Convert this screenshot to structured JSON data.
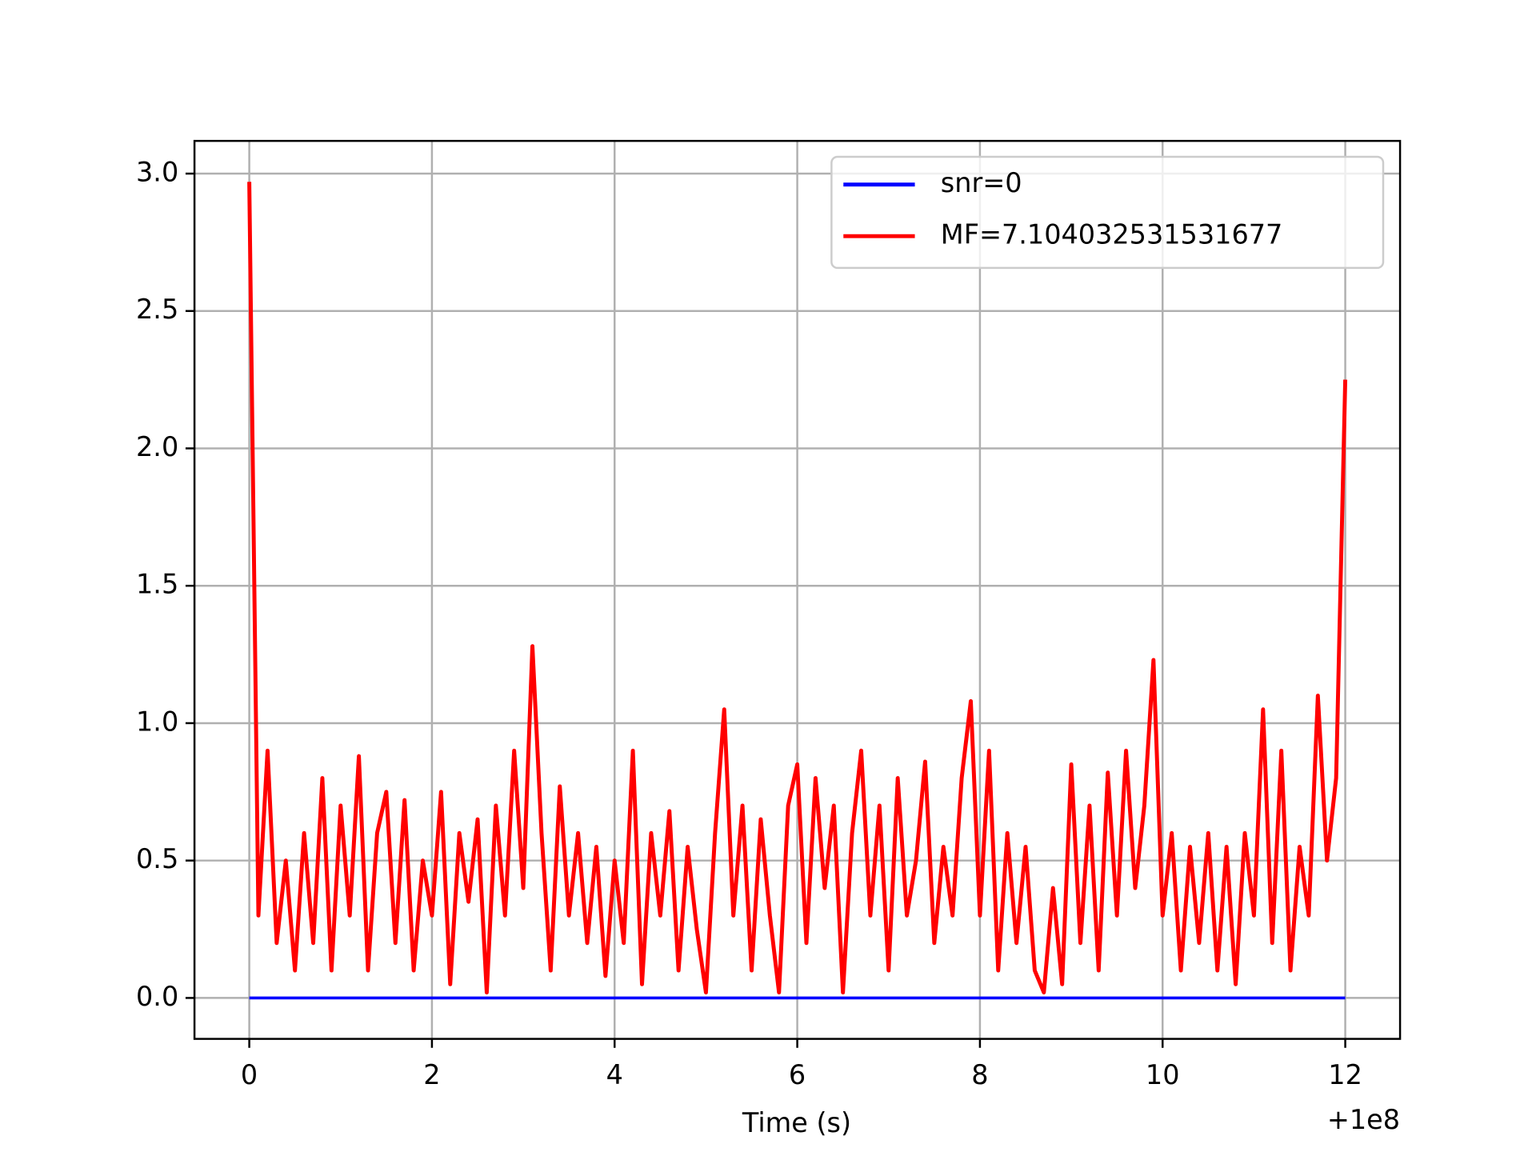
{
  "chart_data": {
    "type": "line",
    "xlabel": "Time (s)",
    "x_offset_label": "+1e8",
    "xlim": [
      -0.6,
      12.6
    ],
    "ylim": [
      -0.149,
      3.119
    ],
    "xticks": [
      0,
      2,
      4,
      6,
      8,
      10,
      12
    ],
    "yticks": [
      {
        "value": 0,
        "label": "0.0"
      },
      0.5,
      {
        "value": 1,
        "label": "1.0"
      },
      1.5,
      {
        "value": 2,
        "label": "2.0"
      },
      2.5,
      {
        "value": 3,
        "label": "3.0"
      }
    ],
    "grid": true,
    "legend": "upper right",
    "series": [
      {
        "name": "snr=0",
        "color": "#0000ff",
        "x": [
          0,
          12
        ],
        "values": [
          0,
          0
        ]
      },
      {
        "name": "MF=7.104032531531677",
        "color": "#ff0000",
        "x": [
          0,
          0.1,
          0.2,
          0.3,
          0.4,
          0.5,
          0.6,
          0.7,
          0.8,
          0.9,
          1,
          1.1,
          1.2,
          1.3,
          1.4,
          1.5,
          1.6,
          1.7,
          1.8,
          1.9,
          2,
          2.1,
          2.2,
          2.3,
          2.4,
          2.5,
          2.6,
          2.7,
          2.8,
          2.9,
          3,
          3.1,
          3.2,
          3.3,
          3.4,
          3.5,
          3.6,
          3.7,
          3.8,
          3.9,
          4,
          4.1,
          4.2,
          4.3,
          4.4,
          4.5,
          4.6,
          4.7,
          4.8,
          4.9,
          5,
          5.1,
          5.2,
          5.3,
          5.4,
          5.5,
          5.6,
          5.7,
          5.8,
          5.9,
          6,
          6.1,
          6.2,
          6.3,
          6.4,
          6.5,
          6.6,
          6.7,
          6.8,
          6.9,
          7,
          7.1,
          7.2,
          7.3,
          7.4,
          7.5,
          7.6,
          7.7,
          7.8,
          7.9,
          8,
          8.1,
          8.2,
          8.3,
          8.4,
          8.5,
          8.6,
          8.7,
          8.8,
          8.9,
          9,
          9.1,
          9.2,
          9.3,
          9.4,
          9.5,
          9.6,
          9.7,
          9.8,
          9.9,
          10,
          10.1,
          10.2,
          10.3,
          10.4,
          10.5,
          10.6,
          10.7,
          10.8,
          10.9,
          11,
          11.1,
          11.2,
          11.3,
          11.4,
          11.5,
          11.6,
          11.7,
          11.8,
          11.9,
          12
        ],
        "values": [
          2.97,
          0.3,
          0.9,
          0.2,
          0.5,
          0.1,
          0.6,
          0.2,
          0.8,
          0.1,
          0.7,
          0.3,
          0.88,
          0.1,
          0.6,
          0.75,
          0.2,
          0.72,
          0.1,
          0.5,
          0.3,
          0.75,
          0.05,
          0.6,
          0.35,
          0.65,
          0.02,
          0.7,
          0.3,
          0.9,
          0.4,
          1.28,
          0.6,
          0.1,
          0.77,
          0.3,
          0.6,
          0.2,
          0.55,
          0.08,
          0.5,
          0.2,
          0.9,
          0.05,
          0.6,
          0.3,
          0.68,
          0.1,
          0.55,
          0.25,
          0.02,
          0.6,
          1.05,
          0.3,
          0.7,
          0.1,
          0.65,
          0.3,
          0.02,
          0.7,
          0.85,
          0.2,
          0.8,
          0.4,
          0.7,
          0.02,
          0.6,
          0.9,
          0.3,
          0.7,
          0.1,
          0.8,
          0.3,
          0.5,
          0.86,
          0.2,
          0.55,
          0.3,
          0.8,
          1.08,
          0.3,
          0.9,
          0.1,
          0.6,
          0.2,
          0.55,
          0.1,
          0.02,
          0.4,
          0.05,
          0.85,
          0.2,
          0.7,
          0.1,
          0.82,
          0.3,
          0.9,
          0.4,
          0.7,
          1.23,
          0.3,
          0.6,
          0.1,
          0.55,
          0.2,
          0.6,
          0.1,
          0.55,
          0.05,
          0.6,
          0.3,
          1.05,
          0.2,
          0.9,
          0.1,
          0.55,
          0.3,
          1.1,
          0.5,
          0.8,
          2.25
        ]
      }
    ]
  }
}
